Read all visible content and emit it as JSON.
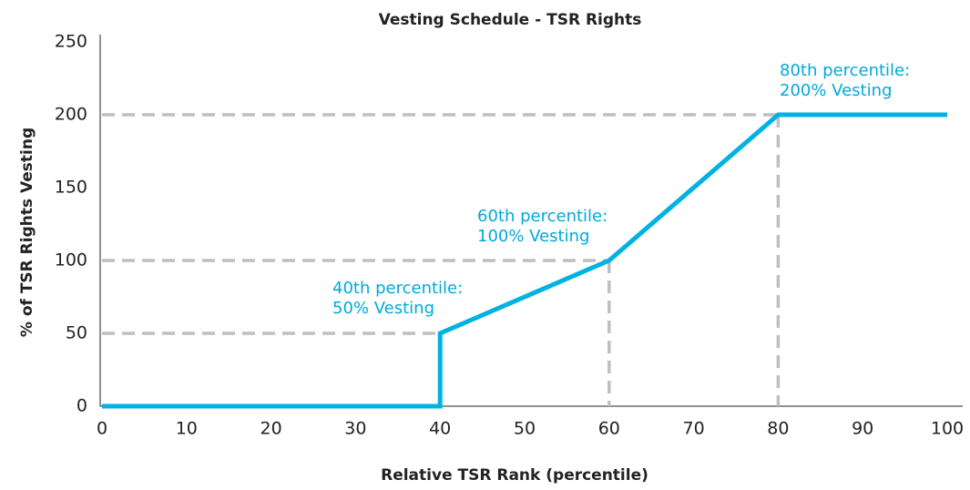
{
  "chart_data": {
    "type": "line",
    "title": "Vesting Schedule - TSR Rights",
    "xlabel": "Relative TSR Rank (percentile)",
    "ylabel": "% of TSR Rights Vesting",
    "x": [
      0,
      40,
      40,
      60,
      80,
      100
    ],
    "series": [
      {
        "name": "Vesting",
        "color": "#00b2e3",
        "values": [
          0,
          0,
          50,
          100,
          200,
          200
        ]
      }
    ],
    "xlim": [
      0,
      100
    ],
    "xticks": [
      0,
      10,
      20,
      30,
      40,
      50,
      60,
      70,
      80,
      90,
      100
    ],
    "ylim": [
      0,
      250
    ],
    "yticks": [
      0,
      50,
      100,
      150,
      200,
      250
    ],
    "annotations": [
      [
        "40th percentile:",
        "50% Vesting"
      ],
      [
        "60th percentile:",
        "100% Vesting"
      ],
      [
        "80th percentile:",
        "200% Vesting"
      ]
    ]
  }
}
